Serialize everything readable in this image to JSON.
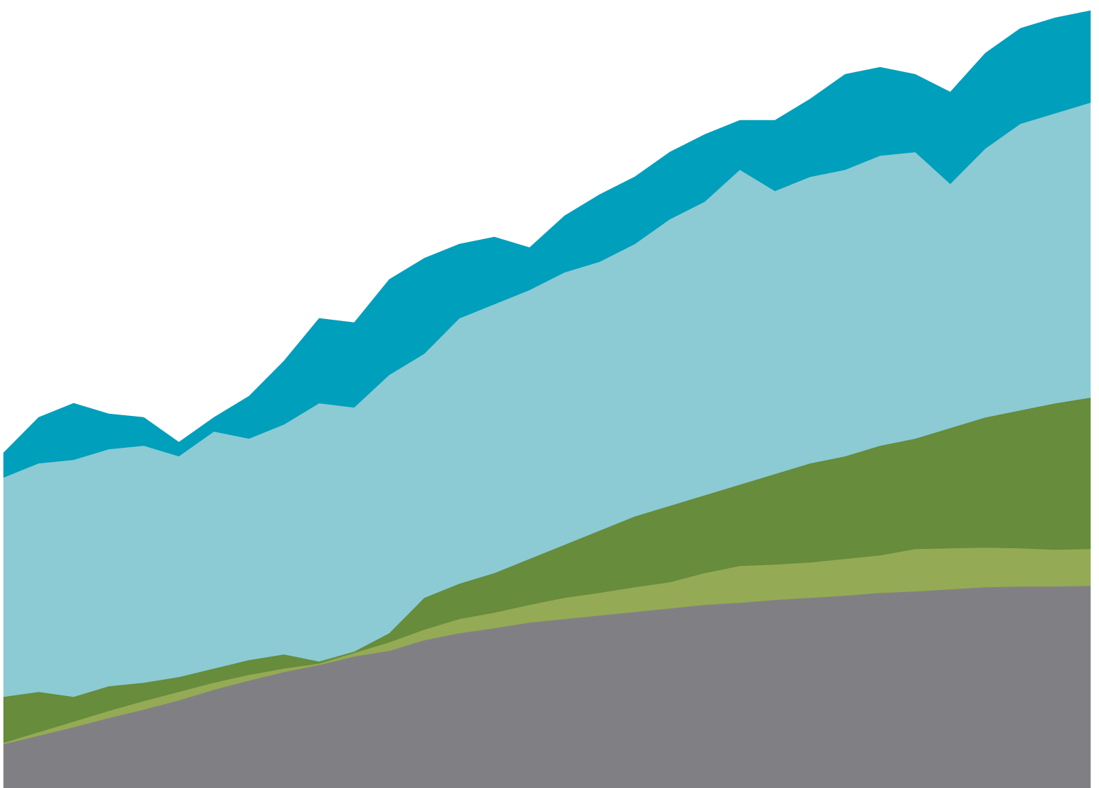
{
  "chart_data": {
    "type": "stacked-area",
    "ylim": [
      0,
      1114
    ],
    "series": [
      {
        "color": "#808084",
        "values": [
          62,
          74,
          86,
          99,
          111,
          124,
          139,
          152,
          164,
          174,
          186,
          194,
          209,
          219,
          226,
          234,
          239,
          244,
          249,
          254,
          259,
          262,
          266,
          269,
          272,
          276,
          278,
          281,
          284,
          285,
          285,
          286
        ]
      },
      {
        "color": "#95aa54",
        "values": [
          2,
          5,
          8,
          10,
          12,
          12,
          10,
          8,
          5,
          2,
          5,
          12,
          15,
          20,
          22,
          25,
          30,
          32,
          35,
          37,
          45,
          52,
          50,
          50,
          52,
          53,
          60,
          58,
          56,
          54,
          52,
          52
        ]
      },
      {
        "color": "#668c3c",
        "values": [
          65,
          57,
          35,
          35,
          26,
          21,
          20,
          21,
          20,
          3,
          2,
          13,
          45,
          50,
          56,
          65,
          75,
          88,
          100,
          108,
          110,
          115,
          128,
          140,
          145,
          155,
          156,
          170,
          184,
          195,
          207,
          214
        ]
      },
      {
        "color": "#8ccbd4",
        "values": [
          310,
          323,
          335,
          335,
          335,
          312,
          335,
          313,
          325,
          365,
          345,
          365,
          345,
          375,
          380,
          380,
          385,
          380,
          385,
          405,
          415,
          445,
          400,
          405,
          405,
          410,
          405,
          345,
          380,
          405,
          410,
          417
        ]
      },
      {
        "color": "#009fbc",
        "values": [
          35,
          65,
          80,
          50,
          40,
          20,
          20,
          60,
          90,
          120,
          120,
          135,
          135,
          105,
          95,
          60,
          80,
          95,
          95,
          95,
          95,
          70,
          100,
          110,
          135,
          125,
          110,
          130,
          135,
          135,
          135,
          130
        ]
      }
    ]
  }
}
